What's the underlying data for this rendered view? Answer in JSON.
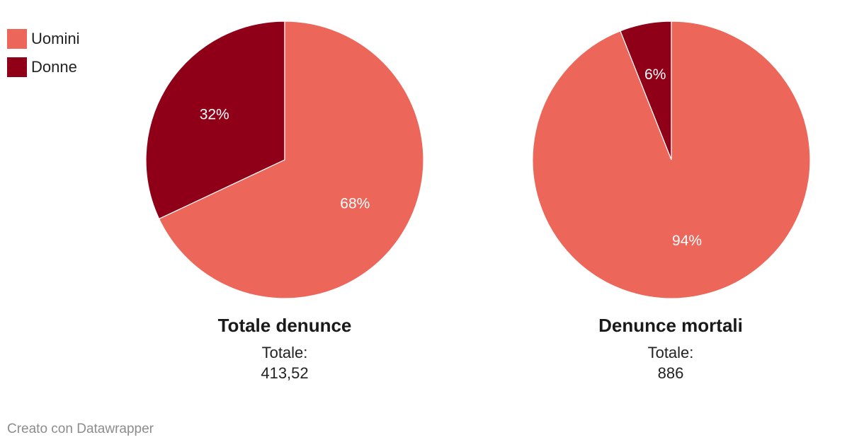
{
  "legend": {
    "items": [
      {
        "label": "Uomini",
        "color": "#ec6659"
      },
      {
        "label": "Donne",
        "color": "#8f0018"
      }
    ]
  },
  "chart_data": [
    {
      "type": "pie",
      "title": "Totale denunce",
      "total_label": "Totale:",
      "total_value": "413,52",
      "slices": [
        {
          "name": "Donne",
          "value": 32,
          "label": "32%"
        },
        {
          "name": "Uomini",
          "value": 68,
          "label": "68%"
        }
      ]
    },
    {
      "type": "pie",
      "title": "Denunce mortali",
      "total_label": "Totale:",
      "total_value": "886",
      "slices": [
        {
          "name": "Donne",
          "value": 6,
          "label": "6%"
        },
        {
          "name": "Uomini",
          "value": 94,
          "label": "94%"
        }
      ]
    }
  ],
  "footer": {
    "credit": "Creato con Datawrapper"
  }
}
